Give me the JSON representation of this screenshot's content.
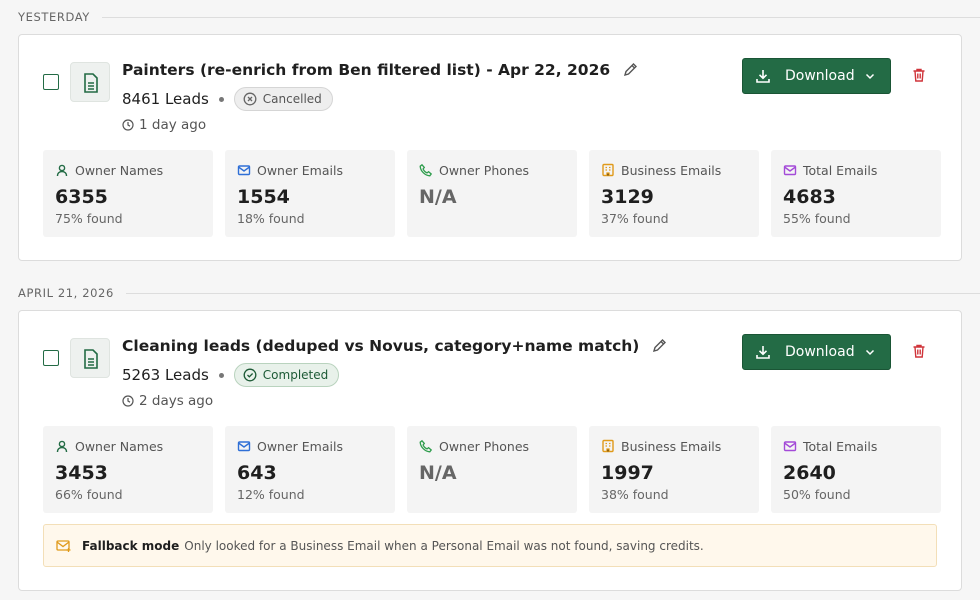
{
  "groups": [
    {
      "label": "YESTERDAY",
      "card": {
        "title": "Painters (re-enrich from Ben filtered list) - Apr 22, 2026",
        "leads": "8461 Leads",
        "status": "Cancelled",
        "time": "1 day ago",
        "download": "Download",
        "stats": [
          {
            "label": "Owner Names",
            "value": "6355",
            "found": "75% found"
          },
          {
            "label": "Owner Emails",
            "value": "1554",
            "found": "18% found"
          },
          {
            "label": "Owner Phones",
            "value": "N/A"
          },
          {
            "label": "Business Emails",
            "value": "3129",
            "found": "37% found"
          },
          {
            "label": "Total Emails",
            "value": "4683",
            "found": "55% found"
          }
        ]
      }
    },
    {
      "label": "APRIL 21, 2026",
      "card": {
        "title": "Cleaning leads (deduped vs Novus, category+name match)",
        "leads": "5263 Leads",
        "status": "Completed",
        "time": "2 days ago",
        "download": "Download",
        "stats": [
          {
            "label": "Owner Names",
            "value": "3453",
            "found": "66% found"
          },
          {
            "label": "Owner Emails",
            "value": "643",
            "found": "12% found"
          },
          {
            "label": "Owner Phones",
            "value": "N/A"
          },
          {
            "label": "Business Emails",
            "value": "1997",
            "found": "38% found"
          },
          {
            "label": "Total Emails",
            "value": "2640",
            "found": "50% found"
          }
        ],
        "note": {
          "title": "Fallback mode",
          "text": "Only looked for a Business Email when a Personal Email was not found, saving credits."
        }
      }
    }
  ]
}
